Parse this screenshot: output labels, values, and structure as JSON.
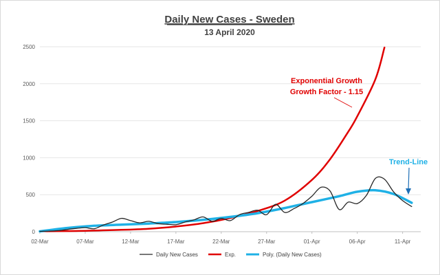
{
  "chart_data": {
    "type": "line",
    "title": "Daily New Cases - Sweden",
    "subtitle": "13 April 2020",
    "xlabel": "",
    "ylabel": "",
    "ylim": [
      0,
      2500
    ],
    "y_ticks": [
      0,
      500,
      1000,
      1500,
      2000,
      2500
    ],
    "x_range": [
      "2020-03-02",
      "2020-04-13"
    ],
    "x_tick_labels": [
      "02-Mar",
      "07-Mar",
      "12-Mar",
      "17-Mar",
      "22-Mar",
      "27-Mar",
      "01-Apr",
      "06-Apr",
      "11-Apr"
    ],
    "grid": true,
    "legend_position": "bottom",
    "series": [
      {
        "name": "Daily New Cases",
        "color": "#262626",
        "style": "thin-line",
        "x": [
          "2020-03-02",
          "2020-03-03",
          "2020-03-04",
          "2020-03-05",
          "2020-03-06",
          "2020-03-07",
          "2020-03-08",
          "2020-03-09",
          "2020-03-10",
          "2020-03-11",
          "2020-03-12",
          "2020-03-13",
          "2020-03-14",
          "2020-03-15",
          "2020-03-16",
          "2020-03-17",
          "2020-03-18",
          "2020-03-19",
          "2020-03-20",
          "2020-03-21",
          "2020-03-22",
          "2020-03-23",
          "2020-03-24",
          "2020-03-25",
          "2020-03-26",
          "2020-03-27",
          "2020-03-28",
          "2020-03-29",
          "2020-03-30",
          "2020-03-31",
          "2020-04-01",
          "2020-04-02",
          "2020-04-03",
          "2020-04-04",
          "2020-04-05",
          "2020-04-06",
          "2020-04-07",
          "2020-04-08",
          "2020-04-09",
          "2020-04-10",
          "2020-04-11",
          "2020-04-12"
        ],
        "values": [
          5,
          8,
          15,
          30,
          45,
          55,
          40,
          90,
          130,
          180,
          150,
          120,
          140,
          110,
          100,
          95,
          130,
          160,
          200,
          140,
          180,
          150,
          230,
          260,
          290,
          230,
          370,
          260,
          310,
          380,
          480,
          600,
          550,
          300,
          400,
          380,
          490,
          720,
          710,
          540,
          420,
          340
        ]
      },
      {
        "name": "Exp.",
        "color": "#e00000",
        "style": "thick-line",
        "growth_factor": 1.15,
        "x": [
          "2020-03-02",
          "2020-03-05",
          "2020-03-08",
          "2020-03-11",
          "2020-03-14",
          "2020-03-17",
          "2020-03-20",
          "2020-03-23",
          "2020-03-26",
          "2020-03-29",
          "2020-04-01",
          "2020-04-03",
          "2020-04-05",
          "2020-04-06",
          "2020-04-08",
          "2020-04-09"
        ],
        "values": [
          5,
          8,
          15,
          25,
          40,
          70,
          115,
          185,
          280,
          420,
          700,
          980,
          1350,
          1560,
          2060,
          2490
        ]
      },
      {
        "name": "Poly. (Daily New Cases)",
        "color": "#1fb1e6",
        "style": "thick-line",
        "x": [
          "2020-03-02",
          "2020-03-05",
          "2020-03-08",
          "2020-03-11",
          "2020-03-14",
          "2020-03-17",
          "2020-03-20",
          "2020-03-23",
          "2020-03-26",
          "2020-03-29",
          "2020-04-01",
          "2020-04-04",
          "2020-04-06",
          "2020-04-08",
          "2020-04-10",
          "2020-04-12"
        ],
        "values": [
          5,
          50,
          80,
          95,
          110,
          130,
          160,
          200,
          250,
          320,
          400,
          480,
          540,
          560,
          510,
          390
        ]
      }
    ],
    "annotations": [
      {
        "text": "Exponential Growth",
        "color": "#e00000"
      },
      {
        "text": "Growth Factor - 1.15",
        "color": "#e00000"
      },
      {
        "text": "Trend-Line",
        "color": "#1fb1e6"
      }
    ]
  }
}
